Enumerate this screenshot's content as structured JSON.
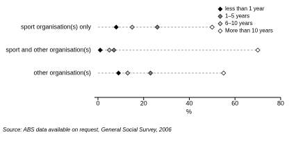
{
  "chart_data": {
    "type": "dot",
    "categories": [
      "sport organisation(s) only",
      "sport and other organisation(s)",
      "other organisation(s)"
    ],
    "series": [
      {
        "name": "less than 1 year",
        "color": "#000000",
        "values": [
          8,
          1,
          9
        ]
      },
      {
        "name": "1–5 years",
        "color": "#808080",
        "values": [
          26,
          7,
          23
        ]
      },
      {
        "name": "6–10 years",
        "color": "#c8c8c8",
        "values": [
          15,
          5,
          13
        ]
      },
      {
        "name": "More than 10 years",
        "color": "#ffffff",
        "values": [
          50,
          70,
          55
        ]
      }
    ],
    "xlim": [
      0,
      80
    ],
    "xticks": [
      0,
      20,
      40,
      60,
      80
    ],
    "xlabel": "%",
    "legend": "top-right",
    "source": "Source: ABS data available on request, General Social Survey, 2006"
  }
}
